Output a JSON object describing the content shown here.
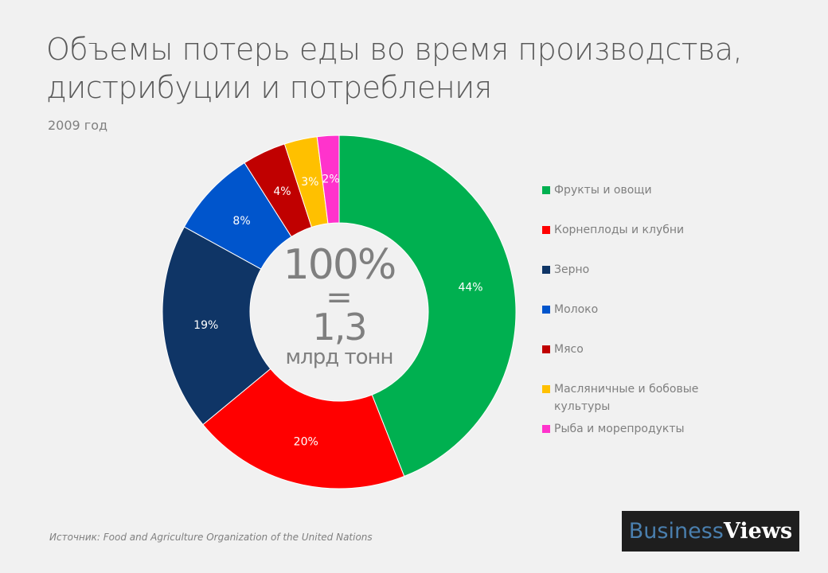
{
  "title_line1": "Объемы потерь еды во время производства,",
  "title_line2": "дистрибуции и потребления",
  "subtitle": "2009 год",
  "center": {
    "line1": "100%",
    "line2": "=",
    "line3": "1,3",
    "line4": "млрд тонн"
  },
  "chart_data": {
    "type": "pie",
    "donut": true,
    "categories": [
      "Фрукты и овощи",
      "Корнеплоды  и клубни",
      "Зерно",
      "Молоко",
      "Мясо",
      "Масляничные  и бобовые культуры",
      "Рыба и морепродукты"
    ],
    "values": [
      44,
      20,
      19,
      8,
      4,
      3,
      2
    ],
    "labels": [
      "44%",
      "20%",
      "19%",
      "8%",
      "4%",
      "3%",
      "2%"
    ],
    "colors": [
      "#00b050",
      "#ff0000",
      "#0f3566",
      "#0055cc",
      "#c00000",
      "#ffc000",
      "#ff33cc"
    ],
    "start": "top",
    "direction": "clockwise",
    "legend_position": "right"
  },
  "source": "Источник: Food and Agriculture Organization  of the United Nations",
  "logo": {
    "part1": "Business",
    "part2": "Views"
  }
}
